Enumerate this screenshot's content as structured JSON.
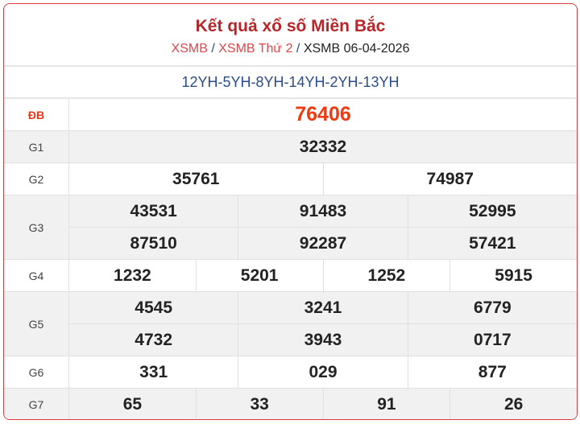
{
  "header": {
    "title": "Kết quả xổ số Miền Bắc",
    "breadcrumb": [
      "XSMB",
      "XSMB Thứ 2",
      "XSMB 06-04-2026"
    ],
    "separator": "/"
  },
  "codes": "12YH-5YH-8YH-14YH-2YH-13YH",
  "prizes": [
    {
      "label": "ĐB",
      "lines": [
        [
          "76406"
        ]
      ]
    },
    {
      "label": "G1",
      "lines": [
        [
          "32332"
        ]
      ]
    },
    {
      "label": "G2",
      "lines": [
        [
          "35761",
          "74987"
        ]
      ]
    },
    {
      "label": "G3",
      "lines": [
        [
          "43531",
          "91483",
          "52995"
        ],
        [
          "87510",
          "92287",
          "57421"
        ]
      ]
    },
    {
      "label": "G4",
      "lines": [
        [
          "1232",
          "5201",
          "1252",
          "5915"
        ]
      ]
    },
    {
      "label": "G5",
      "lines": [
        [
          "4545",
          "3241",
          "6779"
        ],
        [
          "4732",
          "3943",
          "0717"
        ]
      ]
    },
    {
      "label": "G6",
      "lines": [
        [
          "331",
          "029",
          "877"
        ]
      ]
    },
    {
      "label": "G7",
      "lines": [
        [
          "65",
          "33",
          "91",
          "26"
        ]
      ]
    }
  ],
  "colors": {
    "border": "#e03a3a",
    "title": "#b8262a",
    "link": "#e2454a",
    "codes": "#2b4c8c",
    "special": "#f03a12"
  }
}
